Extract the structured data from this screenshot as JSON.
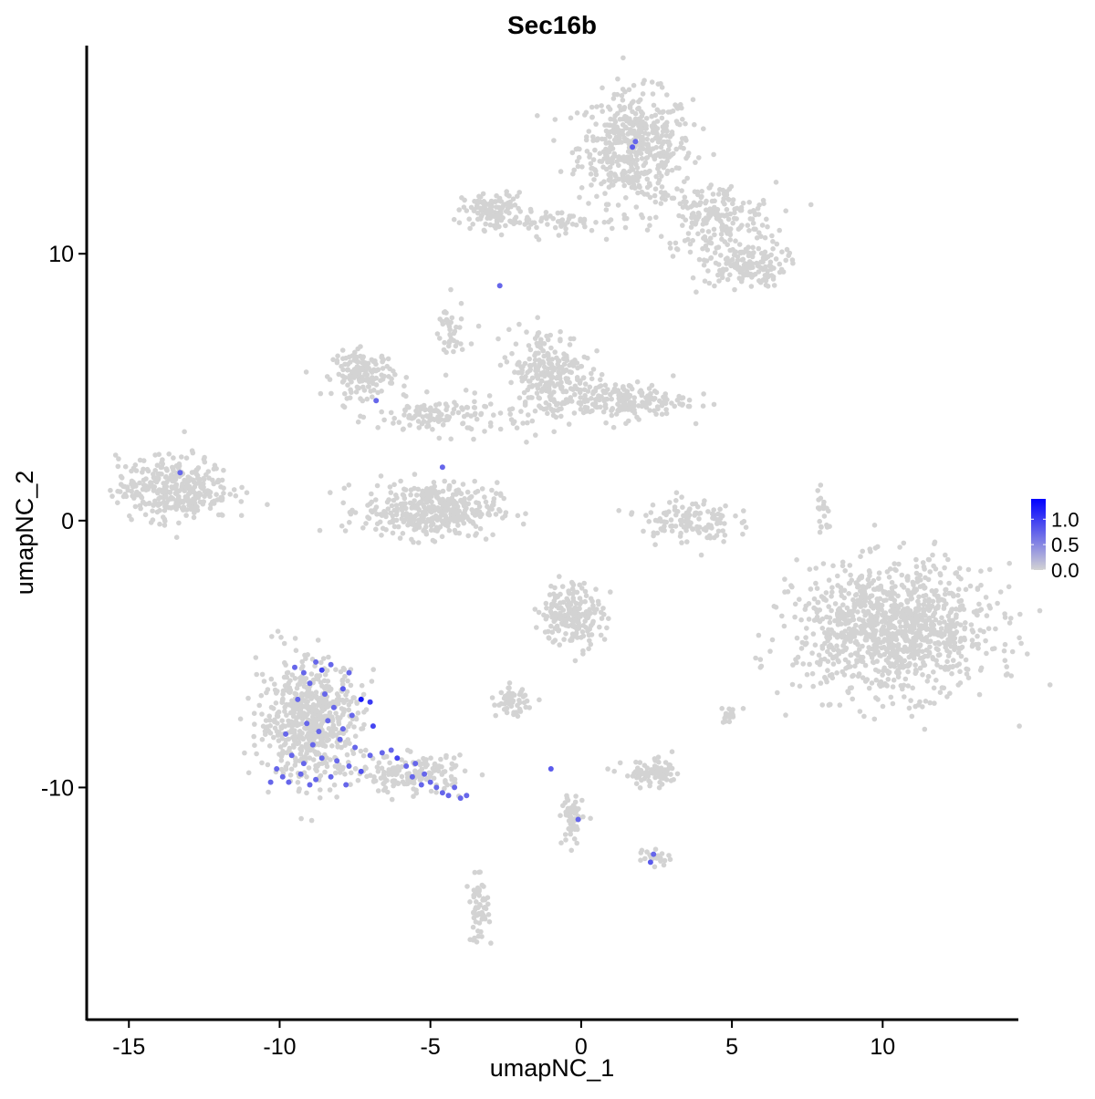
{
  "chart_data": {
    "type": "scatter",
    "title": "Sec16b",
    "xlabel": "umapNC_1",
    "ylabel": "umapNC_2",
    "xlim": [
      -16.4,
      14.5
    ],
    "ylim": [
      -18.7,
      17.8
    ],
    "xticks": [
      -15,
      -10,
      -5,
      0,
      5,
      10
    ],
    "yticks": [
      -10,
      0,
      10
    ],
    "grid": false,
    "legend": {
      "placement": "right",
      "type": "colorbar",
      "range": [
        0,
        1.4
      ],
      "ticks": [
        "0.0",
        "0.5",
        "1.0"
      ],
      "low_color": "#d3d3d3",
      "high_color": "#0000ff"
    },
    "cell_clusters": [
      {
        "center": [
          1.8,
          14.0
        ],
        "spread": [
          1.1,
          1.2
        ],
        "n": 500,
        "value": 0
      },
      {
        "center": [
          4.4,
          11.3
        ],
        "spread": [
          1.2,
          0.8
        ],
        "n": 200,
        "value": 0
      },
      {
        "center": [
          5.4,
          9.6
        ],
        "spread": [
          0.8,
          0.5
        ],
        "n": 150,
        "value": 0
      },
      {
        "center": [
          -2.9,
          11.6
        ],
        "spread": [
          0.6,
          0.4
        ],
        "n": 120,
        "value": 0
      },
      {
        "center": [
          -0.9,
          11.2
        ],
        "spread": [
          1.3,
          0.25
        ],
        "n": 60,
        "value": 0
      },
      {
        "center": [
          -7.2,
          5.5
        ],
        "spread": [
          0.6,
          0.5
        ],
        "n": 150,
        "value": 0
      },
      {
        "center": [
          -4.7,
          3.9
        ],
        "spread": [
          1.2,
          0.4
        ],
        "n": 120,
        "value": 0
      },
      {
        "center": [
          -4.4,
          6.9
        ],
        "spread": [
          0.3,
          0.8
        ],
        "n": 40,
        "value": 0
      },
      {
        "center": [
          -5.0,
          0.4
        ],
        "spread": [
          1.3,
          0.6
        ],
        "n": 400,
        "value": 0
      },
      {
        "center": [
          -1.1,
          5.5
        ],
        "spread": [
          0.8,
          1.0
        ],
        "n": 250,
        "value": 0
      },
      {
        "center": [
          1.3,
          4.5
        ],
        "spread": [
          1.3,
          0.4
        ],
        "n": 200,
        "value": 0
      },
      {
        "center": [
          -13.5,
          1.2
        ],
        "spread": [
          1.1,
          0.7
        ],
        "n": 350,
        "value": 0
      },
      {
        "center": [
          3.5,
          0.0
        ],
        "spread": [
          0.9,
          0.5
        ],
        "n": 120,
        "value": 0
      },
      {
        "center": [
          10.4,
          -4.1
        ],
        "spread": [
          1.9,
          1.4
        ],
        "n": 1100,
        "value": 0
      },
      {
        "center": [
          -0.3,
          -3.5
        ],
        "spread": [
          0.6,
          0.7
        ],
        "n": 200,
        "value": 0
      },
      {
        "center": [
          -9.0,
          -7.5
        ],
        "spread": [
          1.0,
          1.3
        ],
        "n": 600,
        "value": 0
      },
      {
        "center": [
          -5.6,
          -9.5
        ],
        "spread": [
          1.0,
          0.4
        ],
        "n": 150,
        "value": 0
      },
      {
        "center": [
          -2.3,
          -6.8
        ],
        "spread": [
          0.3,
          0.3
        ],
        "n": 60,
        "value": 0
      },
      {
        "center": [
          2.4,
          -9.5
        ],
        "spread": [
          0.6,
          0.3
        ],
        "n": 80,
        "value": 0
      },
      {
        "center": [
          -0.3,
          -11.2
        ],
        "spread": [
          0.2,
          0.6
        ],
        "n": 60,
        "value": 0
      },
      {
        "center": [
          -3.4,
          -14.6
        ],
        "spread": [
          0.2,
          0.7
        ],
        "n": 60,
        "value": 0
      },
      {
        "center": [
          8.0,
          0.4
        ],
        "spread": [
          0.15,
          0.5
        ],
        "n": 20,
        "value": 0
      },
      {
        "center": [
          5.0,
          -7.3
        ],
        "spread": [
          0.3,
          0.2
        ],
        "n": 20,
        "value": 0
      },
      {
        "center": [
          2.4,
          -12.6
        ],
        "spread": [
          0.3,
          0.2
        ],
        "n": 20,
        "value": 0
      }
    ],
    "expressed_cells": [
      [
        1.7,
        14.0,
        0.8
      ],
      [
        1.8,
        14.2,
        0.7
      ],
      [
        -2.7,
        8.8,
        0.7
      ],
      [
        -6.8,
        4.5,
        0.7
      ],
      [
        -13.3,
        1.8,
        0.7
      ],
      [
        -4.6,
        2.0,
        0.7
      ],
      [
        -1.0,
        -9.3,
        0.8
      ],
      [
        -0.1,
        -11.2,
        0.7
      ],
      [
        2.4,
        -12.5,
        0.7
      ],
      [
        2.3,
        -12.8,
        0.8
      ],
      [
        -9.5,
        -5.5,
        0.7
      ],
      [
        -9.2,
        -5.7,
        0.7
      ],
      [
        -8.8,
        -5.3,
        0.7
      ],
      [
        -8.3,
        -5.4,
        0.7
      ],
      [
        -7.7,
        -5.7,
        0.7
      ],
      [
        -8.6,
        -5.6,
        1.0
      ],
      [
        -7.9,
        -6.3,
        0.8
      ],
      [
        -7.3,
        -6.7,
        1.4
      ],
      [
        -7.0,
        -6.8,
        1.1
      ],
      [
        -6.9,
        -7.7,
        1.0
      ],
      [
        -9.0,
        -6.1,
        0.7
      ],
      [
        -8.5,
        -6.5,
        0.7
      ],
      [
        -9.4,
        -6.7,
        0.7
      ],
      [
        -8.2,
        -7.0,
        0.7
      ],
      [
        -7.6,
        -7.3,
        0.7
      ],
      [
        -9.1,
        -7.6,
        0.7
      ],
      [
        -8.7,
        -7.9,
        0.7
      ],
      [
        -9.8,
        -8.0,
        0.7
      ],
      [
        -8.0,
        -8.2,
        0.7
      ],
      [
        -7.5,
        -8.5,
        0.7
      ],
      [
        -9.6,
        -8.8,
        0.7
      ],
      [
        -9.2,
        -9.1,
        0.7
      ],
      [
        -8.6,
        -8.9,
        0.7
      ],
      [
        -8.1,
        -9.0,
        0.7
      ],
      [
        -7.7,
        -9.2,
        0.7
      ],
      [
        -7.3,
        -9.4,
        0.9
      ],
      [
        -10.1,
        -9.3,
        0.7
      ],
      [
        -9.9,
        -9.6,
        0.7
      ],
      [
        -9.3,
        -9.5,
        0.7
      ],
      [
        -8.8,
        -9.7,
        0.7
      ],
      [
        -8.3,
        -9.6,
        0.7
      ],
      [
        -7.8,
        -9.9,
        0.7
      ],
      [
        -10.3,
        -9.8,
        0.7
      ],
      [
        -9.7,
        -9.8,
        0.7
      ],
      [
        -9.0,
        -9.9,
        0.7
      ],
      [
        -7.0,
        -8.8,
        0.7
      ],
      [
        -6.6,
        -8.7,
        0.7
      ],
      [
        -6.1,
        -8.9,
        1.0
      ],
      [
        -5.8,
        -9.2,
        0.7
      ],
      [
        -5.5,
        -9.1,
        0.7
      ],
      [
        -5.2,
        -9.5,
        0.7
      ],
      [
        -5.0,
        -9.8,
        0.7
      ],
      [
        -4.8,
        -10.0,
        0.7
      ],
      [
        -4.6,
        -10.2,
        0.7
      ],
      [
        -4.4,
        -10.3,
        0.7
      ],
      [
        -4.2,
        -10.0,
        0.7
      ],
      [
        -4.0,
        -10.4,
        0.7
      ],
      [
        -3.8,
        -10.3,
        0.7
      ],
      [
        -5.6,
        -9.6,
        0.7
      ],
      [
        -5.3,
        -9.9,
        0.7
      ],
      [
        -6.3,
        -8.6,
        0.7
      ],
      [
        -8.4,
        -7.5,
        0.7
      ],
      [
        -7.9,
        -7.8,
        0.7
      ],
      [
        -8.9,
        -8.4,
        0.7
      ]
    ]
  }
}
